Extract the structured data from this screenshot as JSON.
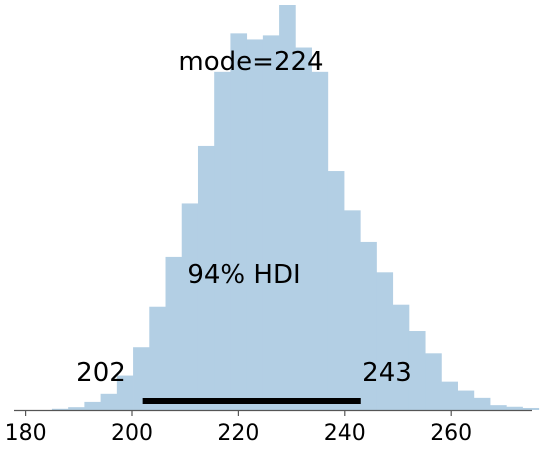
{
  "chart_data": {
    "type": "bar",
    "subtype": "histogram",
    "bar_color": "#b3cfe4",
    "hdi_color": "#000000",
    "axis_color": "#555555",
    "xlim": [
      177,
      277
    ],
    "ylim": [
      0,
      1
    ],
    "grid": false,
    "bin_width": 3.05,
    "bins": [
      {
        "x0": 175.8,
        "count": 0.0
      },
      {
        "x0": 178.85,
        "count": 0.0
      },
      {
        "x0": 181.9,
        "count": 0.0
      },
      {
        "x0": 184.95,
        "count": 0.003
      },
      {
        "x0": 188.0,
        "count": 0.007
      },
      {
        "x0": 191.05,
        "count": 0.02
      },
      {
        "x0": 194.1,
        "count": 0.04
      },
      {
        "x0": 197.15,
        "count": 0.085
      },
      {
        "x0": 200.2,
        "count": 0.155
      },
      {
        "x0": 203.25,
        "count": 0.255
      },
      {
        "x0": 206.3,
        "count": 0.378
      },
      {
        "x0": 209.35,
        "count": 0.51
      },
      {
        "x0": 212.4,
        "count": 0.652
      },
      {
        "x0": 215.45,
        "count": 0.835
      },
      {
        "x0": 218.5,
        "count": 0.93
      },
      {
        "x0": 221.55,
        "count": 0.915
      },
      {
        "x0": 224.6,
        "count": 0.925
      },
      {
        "x0": 227.65,
        "count": 1.0
      },
      {
        "x0": 230.7,
        "count": 0.895
      },
      {
        "x0": 233.75,
        "count": 0.835
      },
      {
        "x0": 236.8,
        "count": 0.59
      },
      {
        "x0": 239.85,
        "count": 0.493
      },
      {
        "x0": 242.9,
        "count": 0.415
      },
      {
        "x0": 245.95,
        "count": 0.34
      },
      {
        "x0": 249.0,
        "count": 0.26
      },
      {
        "x0": 252.05,
        "count": 0.195
      },
      {
        "x0": 255.1,
        "count": 0.14
      },
      {
        "x0": 258.15,
        "count": 0.07
      },
      {
        "x0": 261.2,
        "count": 0.048
      },
      {
        "x0": 264.25,
        "count": 0.03
      },
      {
        "x0": 267.3,
        "count": 0.012
      },
      {
        "x0": 270.35,
        "count": 0.008
      },
      {
        "x0": 273.4,
        "count": 0.005
      },
      {
        "x0": 276.45,
        "count": 0.0
      }
    ],
    "xticks": [
      180,
      200,
      220,
      240,
      260
    ],
    "xtick_labels": [
      "180",
      "200",
      "220",
      "240",
      "260"
    ],
    "mode_label": "mode=224",
    "hdi_label": "94% HDI",
    "hdi_low": 202,
    "hdi_high": 243,
    "hdi_low_label": "202",
    "hdi_high_label": "243"
  }
}
